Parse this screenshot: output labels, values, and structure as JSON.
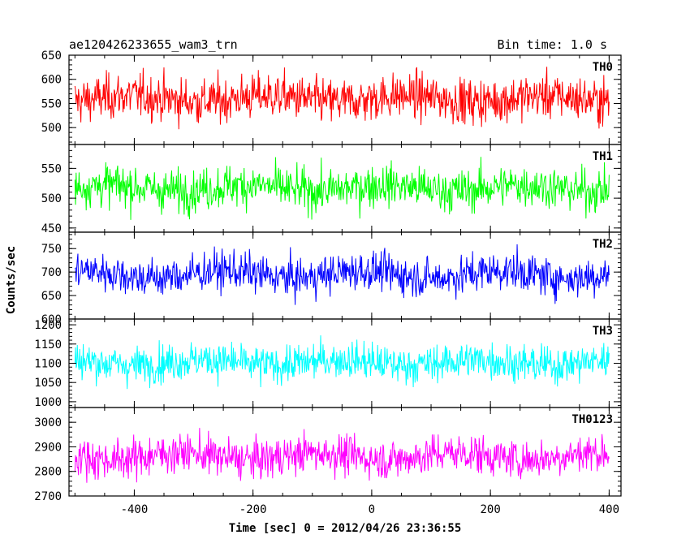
{
  "header": {
    "title": "ae120426233655_wam3_trn",
    "bin_time": "Bin time: 1.0 s"
  },
  "chart_data": {
    "type": "line",
    "title": "ae120426233655_wam3_trn",
    "subtitle": "Bin time: 1.0 s",
    "xlabel": "Time [sec] 0 = 2012/04/26 23:36:55",
    "ylabel": "Counts/sec",
    "xlim": [
      -510,
      420
    ],
    "x_ticks": [
      -400,
      -200,
      0,
      200,
      400
    ],
    "x_start": -500,
    "x_end": 400,
    "x_step": 1,
    "grid": false,
    "legend": "none",
    "panels": [
      {
        "name": "TH0",
        "color": "#ff0000",
        "ylim": [
          465,
          650
        ],
        "y_ticks": [
          500,
          550,
          600,
          650
        ],
        "mean": 560,
        "noise": 33,
        "wave": 6
      },
      {
        "name": "TH1",
        "color": "#00ff00",
        "ylim": [
          443,
          590
        ],
        "y_ticks": [
          450,
          500,
          550
        ],
        "mean": 517,
        "noise": 25,
        "wave": 5
      },
      {
        "name": "TH2",
        "color": "#0000ff",
        "ylim": [
          600,
          785
        ],
        "y_ticks": [
          600,
          650,
          700,
          750
        ],
        "mean": 695,
        "noise": 29,
        "wave": 8
      },
      {
        "name": "TH3",
        "color": "#00ffff",
        "ylim": [
          985,
          1215
        ],
        "y_ticks": [
          1000,
          1050,
          1100,
          1150,
          1200
        ],
        "mean": 1102,
        "noise": 34,
        "wave": 7
      },
      {
        "name": "TH0123",
        "color": "#ff00ff",
        "ylim": [
          2700,
          3060
        ],
        "y_ticks": [
          2700,
          2800,
          2900,
          3000
        ],
        "mean": 2862,
        "noise": 56,
        "wave": 14
      }
    ]
  }
}
